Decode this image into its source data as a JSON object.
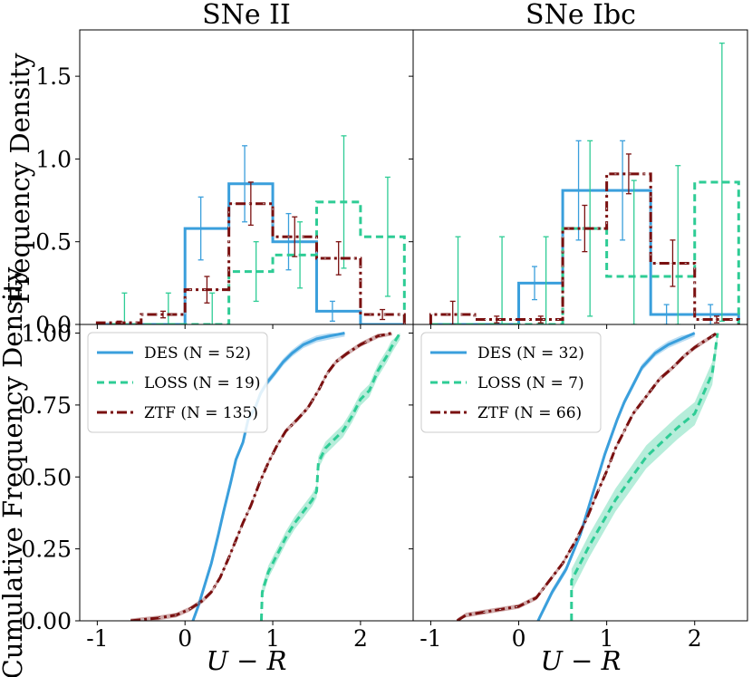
{
  "colors": {
    "DES": "#3a9fdc",
    "LOSS": "#2ecc95",
    "ZTF": "#7a1010",
    "ZTF_dash": "#c8c8c8"
  },
  "labels": {
    "title_left": "SNe II",
    "title_right": "SNe Ibc",
    "ylabel_top": "Frequency Density",
    "ylabel_bottom": "Cumulative Frequency Density",
    "xlabel": "U − R"
  },
  "chart_data": [
    {
      "type": "histogram-step",
      "panel": "top-left",
      "title": "SNe II",
      "ylabel": "Frequency Density",
      "xlim": [
        -1.2,
        2.6
      ],
      "ylim": [
        0,
        1.78
      ],
      "yticks": [
        0.0,
        0.5,
        1.0,
        1.5
      ],
      "series": [
        {
          "name": "DES",
          "bins": [
            -1.0,
            -0.5,
            0.0,
            0.5,
            1.0,
            1.5,
            2.0,
            2.5
          ],
          "values": [
            0.0,
            0.0,
            0.58,
            0.85,
            0.5,
            0.08,
            0.0
          ],
          "errors": [
            0.0,
            0.0,
            0.19,
            0.23,
            0.17,
            0.06,
            0.0
          ]
        },
        {
          "name": "LOSS",
          "bins": [
            -1.0,
            -0.5,
            0.0,
            0.5,
            1.0,
            1.5,
            2.0,
            2.5
          ],
          "values": [
            0.0,
            0.0,
            0.0,
            0.32,
            0.42,
            0.74,
            0.53
          ],
          "errors": [
            0.19,
            0.19,
            0.19,
            0.18,
            0.2,
            0.4,
            0.36
          ]
        },
        {
          "name": "ZTF",
          "bins": [
            -1.0,
            -0.5,
            0.0,
            0.5,
            1.0,
            1.5,
            2.0,
            2.5
          ],
          "values": [
            0.01,
            0.06,
            0.21,
            0.73,
            0.53,
            0.4,
            0.06
          ],
          "errors": [
            0.01,
            0.02,
            0.08,
            0.13,
            0.12,
            0.1,
            0.03
          ]
        }
      ]
    },
    {
      "type": "histogram-step",
      "panel": "top-right",
      "title": "SNe Ibc",
      "xlim": [
        -1.2,
        2.6
      ],
      "ylim": [
        0,
        1.78
      ],
      "yticks": [
        0.0,
        0.5,
        1.0,
        1.5
      ],
      "series": [
        {
          "name": "DES",
          "bins": [
            -1.0,
            -0.5,
            0.0,
            0.5,
            1.0,
            1.5,
            2.0,
            2.5
          ],
          "values": [
            0.0,
            0.0,
            0.25,
            0.81,
            0.81,
            0.06,
            0.06
          ],
          "errors": [
            0.0,
            0.0,
            0.1,
            0.3,
            0.3,
            0.06,
            0.06
          ]
        },
        {
          "name": "LOSS",
          "bins": [
            -1.0,
            -0.5,
            0.0,
            0.5,
            1.0,
            1.5,
            2.0,
            2.5
          ],
          "values": [
            0.0,
            0.0,
            0.0,
            0.58,
            0.29,
            0.29,
            0.86
          ],
          "errors": [
            0.53,
            0.53,
            0.53,
            0.53,
            0.58,
            0.67,
            0.84
          ]
        },
        {
          "name": "ZTF",
          "bins": [
            -1.0,
            -0.5,
            0.0,
            0.5,
            1.0,
            1.5,
            2.0,
            2.5
          ],
          "values": [
            0.06,
            0.03,
            0.03,
            0.58,
            0.91,
            0.37,
            0.03
          ],
          "errors": [
            0.08,
            0.02,
            0.02,
            0.14,
            0.12,
            0.14,
            0.02
          ]
        }
      ]
    },
    {
      "type": "line",
      "panel": "bottom-left",
      "ylabel": "Cumulative Frequency Density",
      "xlabel": "U − R",
      "xlim": [
        -1.2,
        2.6
      ],
      "ylim": [
        0,
        1.03
      ],
      "xticks": [
        -1,
        0,
        1,
        2
      ],
      "xticklabels": [
        "-1",
        "0",
        "1",
        "2"
      ],
      "yticks": [
        0.0,
        0.25,
        0.5,
        0.75,
        1.0
      ],
      "legend_position": "top-left",
      "series": [
        {
          "name": "DES",
          "legend": "DES (N = 52)",
          "style": "solid",
          "x": [
            0.09,
            0.15,
            0.22,
            0.3,
            0.38,
            0.44,
            0.52,
            0.58,
            0.66,
            0.72,
            0.8,
            0.86,
            0.94,
            1.02,
            1.12,
            1.22,
            1.35,
            1.5,
            1.65,
            1.82
          ],
          "y": [
            0.0,
            0.05,
            0.12,
            0.2,
            0.3,
            0.38,
            0.48,
            0.56,
            0.62,
            0.7,
            0.74,
            0.79,
            0.83,
            0.86,
            0.9,
            0.93,
            0.96,
            0.98,
            0.99,
            1.0
          ],
          "band": 0.012
        },
        {
          "name": "LOSS",
          "legend": "LOSS (N = 19)",
          "style": "dashed",
          "x": [
            0.87,
            0.88,
            0.95,
            1.05,
            1.15,
            1.25,
            1.35,
            1.45,
            1.5,
            1.52,
            1.6,
            1.7,
            1.8,
            1.9,
            2.0,
            2.1,
            2.2,
            2.3,
            2.35,
            2.45
          ],
          "y": [
            0.0,
            0.1,
            0.17,
            0.23,
            0.29,
            0.34,
            0.38,
            0.42,
            0.45,
            0.55,
            0.6,
            0.63,
            0.66,
            0.71,
            0.77,
            0.8,
            0.87,
            0.92,
            0.95,
            1.0
          ],
          "band": 0.022
        },
        {
          "name": "ZTF",
          "legend": "ZTF (N = 135)",
          "style": "dashdot",
          "x": [
            -0.62,
            -0.3,
            -0.1,
            0.05,
            0.2,
            0.3,
            0.4,
            0.5,
            0.58,
            0.66,
            0.75,
            0.85,
            0.95,
            1.05,
            1.15,
            1.28,
            1.4,
            1.52,
            1.62,
            1.72,
            1.85,
            2.0,
            2.2,
            2.36
          ],
          "y": [
            0.0,
            0.01,
            0.02,
            0.04,
            0.07,
            0.1,
            0.15,
            0.22,
            0.28,
            0.34,
            0.4,
            0.48,
            0.55,
            0.61,
            0.66,
            0.7,
            0.74,
            0.8,
            0.86,
            0.9,
            0.93,
            0.96,
            0.99,
            1.0
          ],
          "band": 0.008
        }
      ]
    },
    {
      "type": "line",
      "panel": "bottom-right",
      "xlabel": "U − R",
      "xlim": [
        -1.2,
        2.6
      ],
      "ylim": [
        0,
        1.03
      ],
      "xticks": [
        -1,
        0,
        1,
        2
      ],
      "xticklabels": [
        "-1",
        "0",
        "1",
        "2"
      ],
      "yticks": [
        0.0,
        0.25,
        0.5,
        0.75,
        1.0
      ],
      "legend_position": "top-left",
      "series": [
        {
          "name": "DES",
          "legend": "DES (N = 32)",
          "style": "solid",
          "x": [
            0.22,
            0.3,
            0.38,
            0.46,
            0.54,
            0.62,
            0.7,
            0.78,
            0.86,
            0.92,
            0.98,
            1.05,
            1.12,
            1.2,
            1.3,
            1.4,
            1.55,
            1.7,
            1.85,
            2.0
          ],
          "y": [
            0.0,
            0.05,
            0.1,
            0.14,
            0.18,
            0.24,
            0.3,
            0.38,
            0.46,
            0.52,
            0.58,
            0.64,
            0.7,
            0.76,
            0.82,
            0.88,
            0.93,
            0.96,
            0.98,
            1.0
          ],
          "band": 0.012
        },
        {
          "name": "LOSS",
          "legend": "LOSS (N = 7)",
          "style": "dashed",
          "x": [
            0.6,
            0.6,
            0.8,
            1.1,
            1.45,
            1.8,
            2.0,
            2.2,
            2.26
          ],
          "y": [
            0.0,
            0.14,
            0.26,
            0.42,
            0.57,
            0.67,
            0.72,
            0.86,
            1.0
          ],
          "band": 0.04
        },
        {
          "name": "ZTF",
          "legend": "ZTF (N = 66)",
          "style": "dashdot",
          "x": [
            -0.7,
            -0.6,
            -0.4,
            -0.2,
            0.0,
            0.2,
            0.35,
            0.5,
            0.65,
            0.78,
            0.9,
            1.0,
            1.1,
            1.2,
            1.3,
            1.45,
            1.6,
            1.75,
            1.88,
            2.0,
            2.1,
            2.25
          ],
          "y": [
            0.0,
            0.02,
            0.03,
            0.04,
            0.05,
            0.08,
            0.14,
            0.2,
            0.28,
            0.36,
            0.45,
            0.52,
            0.6,
            0.66,
            0.72,
            0.78,
            0.84,
            0.88,
            0.92,
            0.95,
            0.97,
            1.0
          ],
          "band": 0.008
        }
      ]
    }
  ]
}
